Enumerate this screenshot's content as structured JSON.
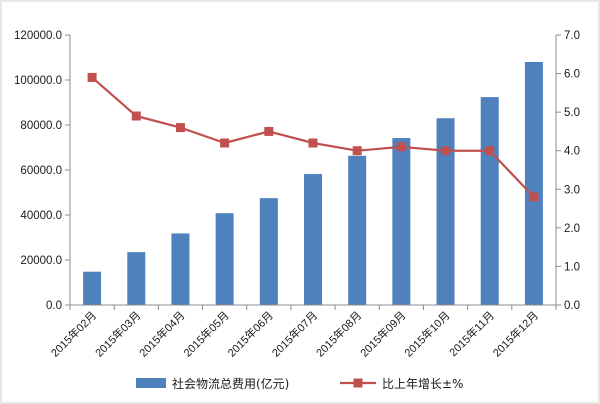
{
  "chart_data": {
    "type": "bar",
    "title": "",
    "xlabel": "",
    "ylabel": "",
    "categories": [
      "2015年02月",
      "2015年03月",
      "2015年04月",
      "2015年05月",
      "2015年06月",
      "2015年07月",
      "2015年08月",
      "2015年09月",
      "2015年10月",
      "2015年11月",
      "2015年12月"
    ],
    "series": [
      {
        "name": "社会物流总费用(亿元)",
        "type": "bar",
        "axis": "left",
        "color": "#4f81bd",
        "values": [
          14800,
          23500,
          31800,
          40800,
          47500,
          58200,
          66300,
          74200,
          83000,
          92400,
          108000
        ]
      },
      {
        "name": "比上年增长±%",
        "type": "line",
        "axis": "right",
        "color": "#c0504d",
        "values": [
          5.9,
          4.9,
          4.6,
          4.2,
          4.5,
          4.2,
          4.0,
          4.1,
          4.0,
          4.0,
          2.8
        ]
      }
    ],
    "ylim": [
      0,
      120000
    ],
    "ylim_right": [
      0,
      7
    ],
    "yticks": [
      "0.0",
      "20000.0",
      "40000.0",
      "60000.0",
      "80000.0",
      "100000.0",
      "120000.0"
    ],
    "yticks_right": [
      "0.0",
      "1.0",
      "2.0",
      "3.0",
      "4.0",
      "5.0",
      "6.0",
      "7.0"
    ],
    "grid": false,
    "legend": "bottom"
  }
}
